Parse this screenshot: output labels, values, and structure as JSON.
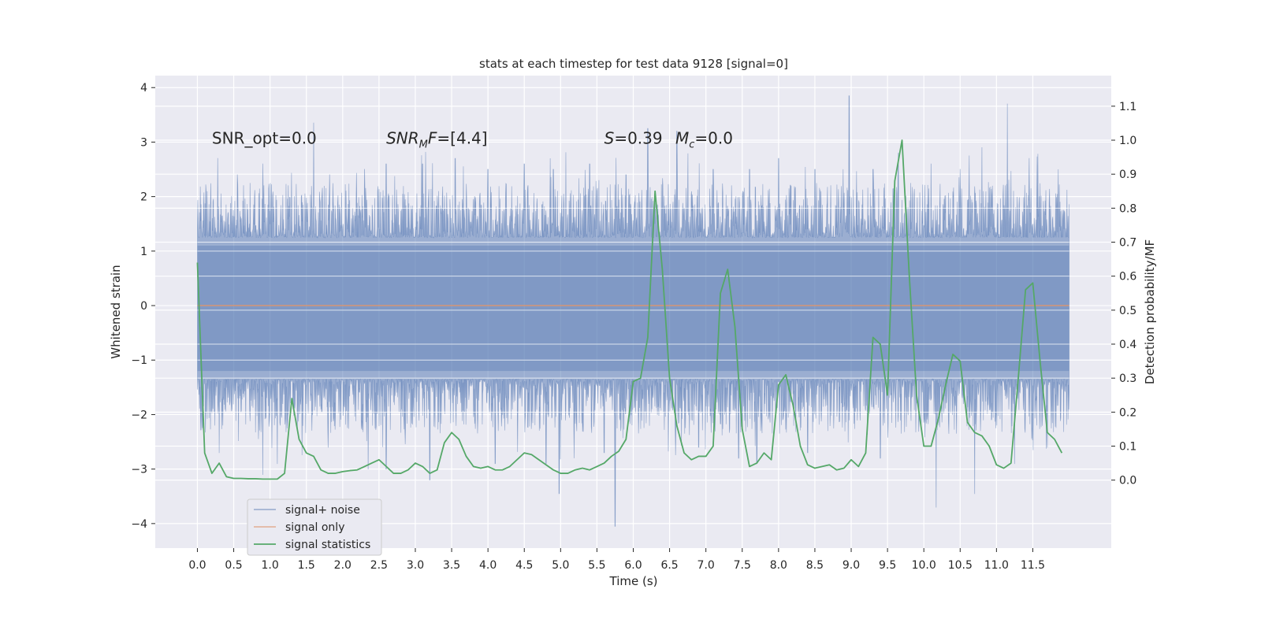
{
  "chart_data": {
    "type": "line",
    "title": "stats at each timestep for test data 9128 [signal=0]",
    "xlabel": "Time (s)",
    "ylabel_left": "Whitened strain",
    "ylabel_right": "Detection probability/MF",
    "xlim": [
      -0.58,
      12.58
    ],
    "ylim_left": [
      -4.45,
      4.22
    ],
    "ylim_right": [
      -0.2,
      1.19
    ],
    "x_ticks": [
      0.0,
      0.5,
      1.0,
      1.5,
      2.0,
      2.5,
      3.0,
      3.5,
      4.0,
      4.5,
      5.0,
      5.5,
      6.0,
      6.5,
      7.0,
      7.5,
      8.0,
      8.5,
      9.0,
      9.5,
      10.0,
      10.5,
      11.0,
      11.5
    ],
    "x_tick_labels": [
      "0.0",
      "0.5",
      "1.0",
      "1.5",
      "2.0",
      "2.5",
      "3.0",
      "3.5",
      "4.0",
      "4.5",
      "5.0",
      "5.5",
      "6.0",
      "6.5",
      "7.0",
      "7.5",
      "8.0",
      "8.5",
      "9.0",
      "9.5",
      "10.0",
      "10.5",
      "11.0",
      "11.5"
    ],
    "y_ticks_left": [
      4,
      3,
      2,
      1,
      0,
      -1,
      -2,
      -3,
      -4
    ],
    "y_tick_labels_left": [
      "4",
      "3",
      "2",
      "1",
      "0",
      "−1",
      "−2",
      "−3",
      "−4"
    ],
    "y_ticks_right": [
      1.1,
      1.0,
      0.9,
      0.8,
      0.7,
      0.6,
      0.5,
      0.4,
      0.3,
      0.2,
      0.1,
      0.0
    ],
    "y_tick_labels_right": [
      "1.1",
      "1.0",
      "0.9",
      "0.8",
      "0.7",
      "0.6",
      "0.5",
      "0.4",
      "0.3",
      "0.2",
      "0.1",
      "0.0"
    ],
    "grid": true,
    "legend_position": "lower-left",
    "annotations": [
      {
        "text": "SNR_opt=0.0",
        "x": 0.2,
        "y": 3.0
      },
      {
        "text": "SNR_MF=[4.4]",
        "x": 2.6,
        "y": 3.0
      },
      {
        "text": "S=0.39  M_c=0.0",
        "x": 5.6,
        "y": 3.0
      }
    ],
    "series": [
      {
        "name": "signal+ noise",
        "axis": "left",
        "color": "#4c72b0",
        "opacity": 0.5,
        "style": "dense noise",
        "x_range": [
          0.0,
          12.0
        ],
        "band_low": -1.2,
        "band_high": 1.1,
        "peaks_high": [
          [
            0.12,
            2.1
          ],
          [
            0.28,
            2.7
          ],
          [
            0.55,
            2.4
          ],
          [
            0.9,
            2.6
          ],
          [
            1.25,
            2.2
          ],
          [
            1.6,
            3.35
          ],
          [
            1.82,
            2.4
          ],
          [
            2.3,
            2.5
          ],
          [
            2.6,
            2.6
          ],
          [
            3.1,
            2.6
          ],
          [
            3.55,
            2.7
          ],
          [
            4.0,
            2.5
          ],
          [
            4.5,
            2.6
          ],
          [
            4.9,
            2.5
          ],
          [
            5.4,
            2.6
          ],
          [
            5.9,
            2.4
          ],
          [
            6.2,
            3.25
          ],
          [
            6.6,
            3.2
          ],
          [
            7.1,
            2.5
          ],
          [
            7.6,
            2.5
          ],
          [
            8.0,
            2.7
          ],
          [
            8.5,
            2.5
          ],
          [
            8.97,
            3.85
          ],
          [
            9.3,
            2.5
          ],
          [
            9.65,
            2.8
          ],
          [
            10.1,
            2.6
          ],
          [
            10.5,
            2.5
          ],
          [
            10.8,
            2.9
          ],
          [
            11.15,
            3.7
          ],
          [
            11.45,
            2.7
          ],
          [
            11.85,
            2.5
          ]
        ],
        "peaks_low": [
          [
            0.05,
            -2.0
          ],
          [
            0.3,
            -2.7
          ],
          [
            0.9,
            -3.1
          ],
          [
            1.1,
            -2.9
          ],
          [
            1.45,
            -2.2
          ],
          [
            1.8,
            -2.6
          ],
          [
            2.35,
            -3.0
          ],
          [
            2.6,
            -3.0
          ],
          [
            3.2,
            -3.2
          ],
          [
            4.1,
            -2.9
          ],
          [
            4.8,
            -2.9
          ],
          [
            4.98,
            -3.45
          ],
          [
            5.6,
            -2.7
          ],
          [
            5.75,
            -4.05
          ],
          [
            6.9,
            -2.6
          ],
          [
            7.45,
            -2.8
          ],
          [
            7.7,
            -2.9
          ],
          [
            8.4,
            -2.7
          ],
          [
            9.4,
            -2.8
          ],
          [
            10.17,
            -3.7
          ],
          [
            10.7,
            -3.45
          ],
          [
            11.25,
            -2.9
          ],
          [
            11.7,
            -2.6
          ]
        ]
      },
      {
        "name": "signal only",
        "axis": "left",
        "color": "#dd8452",
        "x": [
          0.0,
          12.0
        ],
        "y": [
          0.0,
          0.0
        ]
      },
      {
        "name": "signal statistics",
        "axis": "right",
        "color": "#55a868",
        "x": [
          0.0,
          0.1,
          0.2,
          0.3,
          0.4,
          0.5,
          0.6,
          0.7,
          0.8,
          0.9,
          1.0,
          1.1,
          1.2,
          1.3,
          1.4,
          1.5,
          1.6,
          1.7,
          1.8,
          1.9,
          2.0,
          2.1,
          2.2,
          2.3,
          2.4,
          2.5,
          2.6,
          2.7,
          2.8,
          2.9,
          3.0,
          3.1,
          3.2,
          3.3,
          3.4,
          3.5,
          3.6,
          3.7,
          3.8,
          3.9,
          4.0,
          4.1,
          4.2,
          4.3,
          4.4,
          4.5,
          4.6,
          4.7,
          4.8,
          4.9,
          5.0,
          5.1,
          5.2,
          5.3,
          5.4,
          5.5,
          5.6,
          5.7,
          5.8,
          5.9,
          6.0,
          6.1,
          6.2,
          6.3,
          6.4,
          6.5,
          6.6,
          6.7,
          6.8,
          6.9,
          7.0,
          7.1,
          7.2,
          7.3,
          7.4,
          7.5,
          7.6,
          7.7,
          7.8,
          7.9,
          8.0,
          8.1,
          8.2,
          8.3,
          8.4,
          8.5,
          8.6,
          8.7,
          8.8,
          8.9,
          9.0,
          9.1,
          9.2,
          9.3,
          9.4,
          9.5,
          9.6,
          9.7,
          9.8,
          9.9,
          10.0,
          10.1,
          10.2,
          10.3,
          10.4,
          10.5,
          10.6,
          10.7,
          10.8,
          10.9,
          11.0,
          11.1,
          11.2,
          11.3,
          11.4,
          11.5,
          11.6,
          11.7,
          11.8,
          11.9
        ],
        "y": [
          0.64,
          0.08,
          0.02,
          0.05,
          0.01,
          0.005,
          0.005,
          0.004,
          0.004,
          0.003,
          0.003,
          0.003,
          0.02,
          0.24,
          0.12,
          0.08,
          0.07,
          0.03,
          0.02,
          0.02,
          0.025,
          0.028,
          0.03,
          0.04,
          0.05,
          0.06,
          0.04,
          0.02,
          0.02,
          0.03,
          0.05,
          0.04,
          0.02,
          0.03,
          0.11,
          0.14,
          0.12,
          0.07,
          0.04,
          0.035,
          0.04,
          0.03,
          0.03,
          0.04,
          0.06,
          0.08,
          0.075,
          0.06,
          0.045,
          0.03,
          0.02,
          0.02,
          0.03,
          0.035,
          0.03,
          0.04,
          0.05,
          0.07,
          0.085,
          0.12,
          0.29,
          0.3,
          0.42,
          0.85,
          0.62,
          0.3,
          0.16,
          0.08,
          0.06,
          0.07,
          0.07,
          0.1,
          0.55,
          0.62,
          0.45,
          0.15,
          0.04,
          0.05,
          0.08,
          0.06,
          0.28,
          0.31,
          0.22,
          0.1,
          0.045,
          0.035,
          0.04,
          0.045,
          0.03,
          0.035,
          0.06,
          0.04,
          0.08,
          0.42,
          0.4,
          0.25,
          0.88,
          1.0,
          0.6,
          0.25,
          0.1,
          0.1,
          0.18,
          0.28,
          0.37,
          0.35,
          0.17,
          0.14,
          0.13,
          0.1,
          0.045,
          0.035,
          0.05,
          0.3,
          0.56,
          0.58,
          0.35,
          0.14,
          0.12,
          0.08
        ]
      }
    ]
  }
}
